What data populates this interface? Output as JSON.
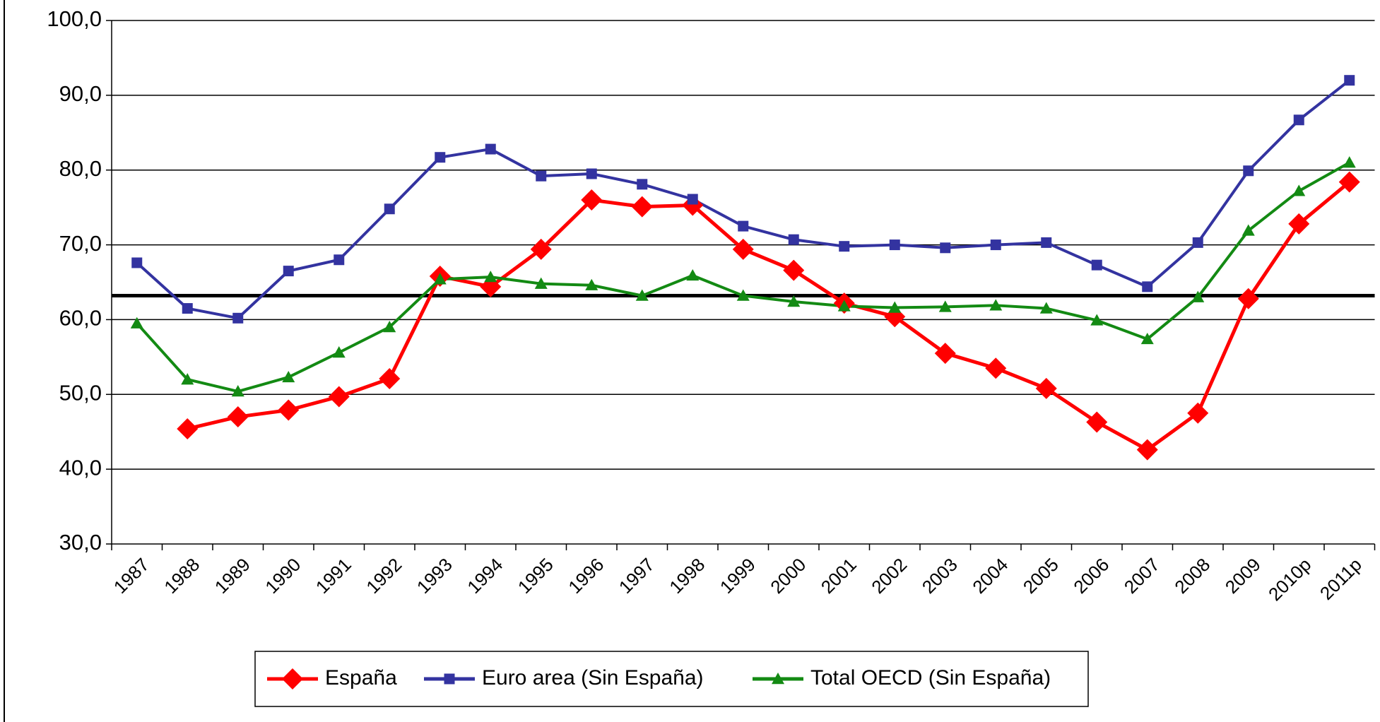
{
  "chart_data": {
    "type": "line",
    "categories": [
      "1987",
      "1988",
      "1989",
      "1990",
      "1991",
      "1992",
      "1993",
      "1994",
      "1995",
      "1996",
      "1997",
      "1998",
      "1999",
      "2000",
      "2001",
      "2002",
      "2003",
      "2004",
      "2005",
      "2006",
      "2007",
      "2008",
      "2009",
      "2010p",
      "2011p"
    ],
    "series": [
      {
        "name": "España",
        "color": "#ff0000",
        "marker": "diamond",
        "values": [
          null,
          45.4,
          47.0,
          47.9,
          49.7,
          52.1,
          65.8,
          64.4,
          69.4,
          76.0,
          75.1,
          75.3,
          69.4,
          66.6,
          62.2,
          60.4,
          55.5,
          53.5,
          50.8,
          46.3,
          42.6,
          47.5,
          62.8,
          72.8,
          78.4
        ]
      },
      {
        "name": "Euro area (Sin España)",
        "color": "#3333a0",
        "marker": "square",
        "values": [
          67.6,
          61.5,
          60.2,
          66.5,
          68.0,
          74.8,
          81.7,
          82.8,
          79.2,
          79.5,
          78.1,
          76.1,
          72.5,
          70.7,
          69.8,
          70.0,
          69.6,
          70.0,
          70.3,
          67.3,
          64.4,
          70.3,
          79.9,
          86.7,
          92.0
        ]
      },
      {
        "name": "Total OECD (Sin España)",
        "color": "#138a13",
        "marker": "triangle",
        "values": [
          59.5,
          52.0,
          50.4,
          52.3,
          55.6,
          59.0,
          65.4,
          65.7,
          64.8,
          64.6,
          63.2,
          65.9,
          63.2,
          62.4,
          61.8,
          61.6,
          61.7,
          61.9,
          61.5,
          59.9,
          57.4,
          63.0,
          71.9,
          77.2,
          81.0
        ]
      }
    ],
    "reference_line": {
      "value": 63.2,
      "color": "#000000"
    },
    "ylim": [
      30,
      100
    ],
    "yticks": [
      {
        "value": 30,
        "label": "30,0"
      },
      {
        "value": 40,
        "label": "40,0"
      },
      {
        "value": 50,
        "label": "50,0"
      },
      {
        "value": 60,
        "label": "60,0"
      },
      {
        "value": 70,
        "label": "70,0"
      },
      {
        "value": 80,
        "label": "80,0"
      },
      {
        "value": 90,
        "label": "90,0"
      },
      {
        "value": 100,
        "label": "100,0"
      }
    ],
    "grid": true,
    "legend": "bottom"
  }
}
